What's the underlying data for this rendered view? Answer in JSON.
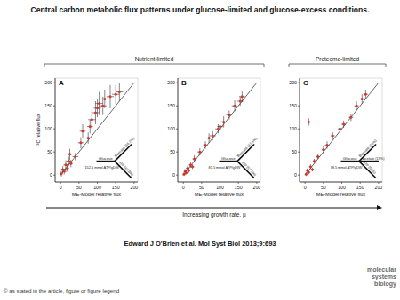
{
  "title": "Central carbon metabolic flux patterns under glucose-limited and glucose-excess conditions.",
  "groups": [
    "Nutrient-limited",
    "Proteome-limited"
  ],
  "arrow_label": "Increasing growth rate, μ",
  "citation": "Edward J O'Brien et al. Mol Syst Biol 2013;9:693",
  "copyright": "© as stated in the article, figure or figure legend",
  "logo": [
    "molecular",
    "systems",
    "biology"
  ],
  "chart_data": [
    {
      "type": "scatter",
      "panel_label": "A",
      "x_label": "ME-Model relative flux",
      "y_label": "¹³C relative flux",
      "xlim": [
        -15,
        210
      ],
      "ylim": [
        -15,
        210
      ],
      "xticks": [
        0,
        50,
        100,
        150,
        200
      ],
      "yticks": [
        0,
        50,
        100,
        150,
        200
      ],
      "color": "#d9352b",
      "marker": "circle",
      "x": [
        2,
        6,
        10,
        14,
        18,
        22,
        28,
        25,
        40,
        55,
        60,
        75,
        85,
        95,
        100,
        105,
        115,
        120,
        135,
        150,
        160,
        80
      ],
      "values": [
        3,
        12,
        8,
        22,
        15,
        30,
        25,
        45,
        40,
        70,
        95,
        80,
        120,
        135,
        145,
        155,
        150,
        165,
        170,
        175,
        180,
        105
      ],
      "errors": [
        6,
        8,
        6,
        10,
        8,
        10,
        8,
        12,
        8,
        12,
        15,
        12,
        20,
        25,
        20,
        25,
        20,
        20,
        25,
        20,
        20,
        15
      ],
      "x_errors": [
        4,
        5,
        6,
        6,
        5,
        6,
        5,
        6,
        8,
        8,
        8,
        8,
        10,
        10,
        10,
        10,
        10,
        10,
        10,
        10,
        10,
        8
      ],
      "inset": {
        "source": "Glucose",
        "branches": [
          "Biomass (36.2%)",
          "ATP (63.8%)"
        ],
        "note": "152.6 mmol ATP/gDW"
      }
    },
    {
      "type": "scatter",
      "panel_label": "B",
      "x_label": "ME-Model relative flux",
      "xlim": [
        -15,
        210
      ],
      "ylim": [
        -15,
        210
      ],
      "xticks": [
        0,
        50,
        100,
        150,
        200
      ],
      "yticks": [
        0,
        50,
        100,
        150,
        200
      ],
      "color": "#d9352b",
      "marker": "circle",
      "x": [
        2,
        5,
        8,
        12,
        15,
        20,
        25,
        30,
        45,
        60,
        70,
        80,
        95,
        100,
        110,
        125,
        140,
        155,
        160
      ],
      "values": [
        2,
        8,
        5,
        15,
        10,
        22,
        18,
        35,
        50,
        65,
        80,
        85,
        100,
        105,
        115,
        130,
        150,
        160,
        170
      ],
      "errors": [
        4,
        5,
        4,
        6,
        5,
        6,
        5,
        8,
        8,
        8,
        10,
        10,
        10,
        10,
        12,
        10,
        12,
        10,
        12
      ],
      "x_errors": [
        4,
        4,
        4,
        5,
        4,
        5,
        5,
        5,
        6,
        6,
        6,
        8,
        8,
        8,
        8,
        8,
        8,
        8,
        8
      ],
      "inset": {
        "source": "Glucose",
        "branches": [
          "Biomass (42.5%)",
          "ATP (57.5%)"
        ],
        "note": "81.5 mmol ATP/gDW"
      }
    },
    {
      "type": "scatter",
      "panel_label": "C",
      "x_label": "ME-Model relative flux",
      "xlim": [
        -15,
        210
      ],
      "ylim": [
        -15,
        210
      ],
      "xticks": [
        0,
        50,
        100,
        150,
        200
      ],
      "yticks": [
        0,
        50,
        100,
        150,
        200
      ],
      "color": "#d9352b",
      "marker": "circle",
      "x": [
        3,
        6,
        10,
        15,
        20,
        25,
        10,
        35,
        50,
        60,
        75,
        95,
        105,
        125,
        140,
        155,
        165
      ],
      "values": [
        2,
        10,
        6,
        18,
        12,
        30,
        115,
        40,
        55,
        65,
        85,
        100,
        110,
        125,
        150,
        165,
        175
      ],
      "errors": [
        4,
        4,
        4,
        5,
        4,
        5,
        8,
        6,
        8,
        8,
        8,
        8,
        8,
        8,
        10,
        10,
        10
      ],
      "x_errors": [
        3,
        3,
        3,
        4,
        4,
        4,
        5,
        5,
        5,
        6,
        6,
        6,
        6,
        6,
        6,
        6,
        6
      ],
      "inset": {
        "source": "Glucose",
        "branches": [
          "Biomass (26%)",
          "Acetate (19%)",
          "ATP (55%)"
        ],
        "note": "78.5 mmol ATP/gDW"
      }
    }
  ]
}
